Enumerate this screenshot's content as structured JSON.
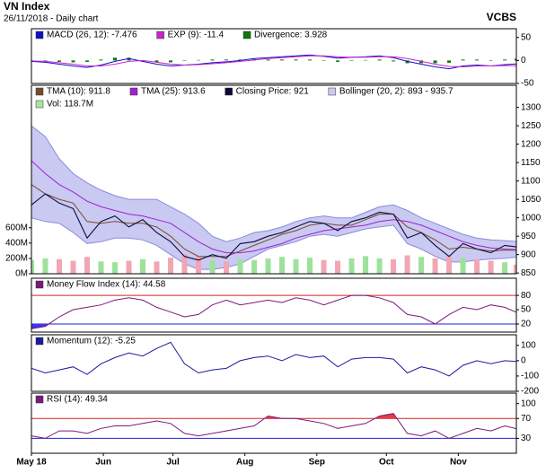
{
  "chart_data": {
    "type": "financial",
    "title": "VN Index",
    "subtitle": "26/11/2018 - Daily chart",
    "source": "VCBS",
    "x": [
      0,
      6,
      12,
      18,
      24,
      30,
      36,
      42,
      48,
      54,
      60,
      66,
      72,
      78,
      84,
      90,
      96,
      102,
      108,
      114,
      120,
      126,
      132,
      138,
      144,
      150,
      156,
      162,
      168,
      174,
      180,
      186,
      192,
      198,
      204,
      209
    ],
    "xlim": [
      0,
      209
    ],
    "xticks": [
      {
        "value": 0,
        "label": "May 18"
      },
      {
        "value": 31,
        "label": "Jun"
      },
      {
        "value": 61,
        "label": "Jul"
      },
      {
        "value": 92,
        "label": "Aug"
      },
      {
        "value": 123,
        "label": "Sep"
      },
      {
        "value": 153,
        "label": "Oct"
      },
      {
        "value": 184,
        "label": "Nov"
      }
    ],
    "panels": [
      {
        "type": "line",
        "ylim": [
          -50,
          69
        ],
        "yticks": [
          50,
          0,
          -50
        ],
        "series": [
          {
            "name": "MACD (26, 12): -7.476",
            "kind": "line",
            "color": "#1010c8",
            "values": [
              -2,
              -4,
              -8,
              -12,
              -15,
              -10,
              -2,
              4,
              -2,
              -8,
              -12,
              -10,
              -8,
              -5,
              -3,
              0,
              4,
              6,
              8,
              10,
              12,
              9,
              5,
              7,
              8,
              10,
              6,
              -2,
              -8,
              -14,
              -18,
              -12,
              -10,
              -12,
              -9,
              -7.476
            ]
          },
          {
            "name": "EXP (9): -11.4",
            "kind": "line",
            "color": "#cc22cc",
            "values": [
              -1,
              -2,
              -5,
              -8,
              -12,
              -12,
              -8,
              -2,
              0,
              -4,
              -8,
              -10,
              -9,
              -7,
              -5,
              -2,
              1,
              4,
              6,
              8,
              10,
              10,
              8,
              7,
              7,
              8,
              8,
              4,
              -2,
              -8,
              -13,
              -14,
              -12,
              -12,
              -11,
              -11.4
            ]
          },
          {
            "name": "Divergence: 3.928",
            "kind": "bars",
            "color": "#0a7a0a",
            "values": [
              -1,
              -2,
              -3,
              -4,
              -3,
              2,
              6,
              6,
              -2,
              -4,
              -4,
              0,
              1,
              2,
              2,
              2,
              3,
              2,
              2,
              2,
              2,
              -1,
              -3,
              0,
              1,
              2,
              -2,
              -6,
              -6,
              -6,
              -5,
              2,
              2,
              0,
              2,
              3.928
            ]
          }
        ]
      },
      {
        "type": "line",
        "ylim": [
          848,
          1360
        ],
        "yticks": [
          1300,
          1250,
          1200,
          1150,
          1100,
          1050,
          1000,
          950,
          900,
          850
        ],
        "y2lim": [
          0,
          2460
        ],
        "y2ticks": [
          {
            "value": 600,
            "label": "600M"
          },
          {
            "value": 400,
            "label": "400M"
          },
          {
            "value": 200,
            "label": "200M"
          },
          {
            "value": 0,
            "label": "0M"
          }
        ],
        "series": [
          {
            "name": "TMA (10): 911.8",
            "kind": "line",
            "color": "#7b4a2a",
            "values": [
              1090,
              1065,
              1050,
              1040,
              990,
              985,
              990,
              985,
              985,
              975,
              950,
              915,
              895,
              895,
              895,
              910,
              925,
              940,
              955,
              965,
              980,
              985,
              980,
              980,
              995,
              1010,
              1010,
              975,
              960,
              940,
              915,
              920,
              915,
              910,
              912,
              911.8
            ]
          },
          {
            "name": "TMA (25): 913.6",
            "kind": "line",
            "color": "#a020d0",
            "values": [
              1155,
              1120,
              1090,
              1070,
              1045,
              1030,
              1020,
              1010,
              1005,
              995,
              985,
              960,
              935,
              915,
              905,
              905,
              910,
              920,
              930,
              945,
              955,
              965,
              970,
              975,
              980,
              990,
              995,
              990,
              980,
              965,
              950,
              935,
              925,
              918,
              915,
              913.6
            ]
          },
          {
            "name": "Closing Price: 921",
            "kind": "close",
            "color": "#0a0a3a",
            "values": [
              1035,
              1065,
              1040,
              1025,
              945,
              990,
              1005,
              975,
              995,
              960,
              935,
              895,
              885,
              900,
              890,
              930,
              935,
              950,
              960,
              975,
              990,
              985,
              965,
              990,
              1000,
              1015,
              1010,
              945,
              960,
              925,
              895,
              930,
              915,
              905,
              925,
              921
            ]
          },
          {
            "name": "Bollinger (20, 2): 893 - 935.7",
            "kind": "band",
            "color": "#c9c9f2",
            "stroke": "#8a8ade",
            "upper": [
              1250,
              1220,
              1160,
              1120,
              1095,
              1075,
              1060,
              1050,
              1050,
              1050,
              1030,
              1010,
              985,
              950,
              935,
              945,
              960,
              965,
              975,
              990,
              1000,
              1005,
              1000,
              1000,
              1015,
              1030,
              1035,
              1020,
              1000,
              985,
              970,
              955,
              945,
              940,
              938,
              935.7
            ],
            "lower": [
              1000,
              990,
              985,
              960,
              930,
              935,
              945,
              945,
              940,
              925,
              900,
              875,
              860,
              860,
              865,
              875,
              895,
              915,
              925,
              935,
              950,
              955,
              950,
              960,
              970,
              975,
              980,
              930,
              915,
              895,
              880,
              880,
              885,
              888,
              890,
              893
            ]
          },
          {
            "name": "Vol: 118.7M",
            "kind": "volume",
            "axis": "y2",
            "color": "#a8e6a0",
            "up_color": "#9ee29a",
            "down_color": "#f2a6b4",
            "values": [
              180,
              200,
              190,
              170,
              220,
              160,
              150,
              170,
              190,
              160,
              210,
              250,
              230,
              170,
              160,
              190,
              180,
              200,
              220,
              190,
              210,
              180,
              170,
              200,
              230,
              200,
              190,
              240,
              220,
              200,
              230,
              210,
              190,
              170,
              150,
              118.7
            ]
          }
        ]
      },
      {
        "type": "line",
        "ylim": [
          3,
          116
        ],
        "yticks": [
          80,
          50,
          20
        ],
        "upper_level": 80,
        "lower_level": 20,
        "level_colors": [
          "#d02020",
          "#2020d0"
        ],
        "series": [
          {
            "name": "Money Flow Index (14): 44.58",
            "kind": "line",
            "color": "#7a1a7a",
            "fill_above": "#e83a4a",
            "fill_below": "#3a3ae8",
            "values": [
              10,
              15,
              35,
              50,
              55,
              60,
              70,
              75,
              70,
              55,
              45,
              35,
              40,
              60,
              70,
              60,
              65,
              70,
              65,
              75,
              70,
              60,
              70,
              80,
              80,
              75,
              65,
              40,
              35,
              20,
              40,
              55,
              50,
              60,
              55,
              44.58
            ]
          }
        ]
      },
      {
        "type": "line",
        "ylim": [
          -200,
          169
        ],
        "yticks": [
          100,
          0,
          -100,
          -200
        ],
        "series": [
          {
            "name": "Momentum (12): -5.25",
            "kind": "line",
            "color": "#1a1aa0",
            "values": [
              -50,
              -80,
              -60,
              -40,
              -90,
              -20,
              20,
              50,
              30,
              80,
              120,
              -20,
              -80,
              -60,
              -50,
              0,
              20,
              30,
              0,
              40,
              20,
              30,
              -40,
              10,
              20,
              20,
              10,
              -80,
              -40,
              -60,
              -100,
              -30,
              0,
              -20,
              0,
              -5.25
            ]
          }
        ]
      },
      {
        "type": "line",
        "ylim": [
          0,
          121
        ],
        "yticks": [
          100,
          70,
          30
        ],
        "upper_level": 70,
        "lower_level": 30,
        "level_colors": [
          "#d02020",
          "#2020d0"
        ],
        "series": [
          {
            "name": "RSI (14): 49.34",
            "kind": "line",
            "color": "#7a1a7a",
            "fill_above": "#e83a4a",
            "fill_below": "#3a3ae8",
            "values": [
              35,
              30,
              45,
              45,
              40,
              50,
              55,
              55,
              60,
              65,
              60,
              40,
              35,
              40,
              45,
              50,
              55,
              75,
              70,
              70,
              65,
              60,
              50,
              55,
              60,
              75,
              80,
              40,
              35,
              45,
              30,
              40,
              50,
              45,
              55,
              49.34
            ]
          }
        ]
      }
    ]
  }
}
